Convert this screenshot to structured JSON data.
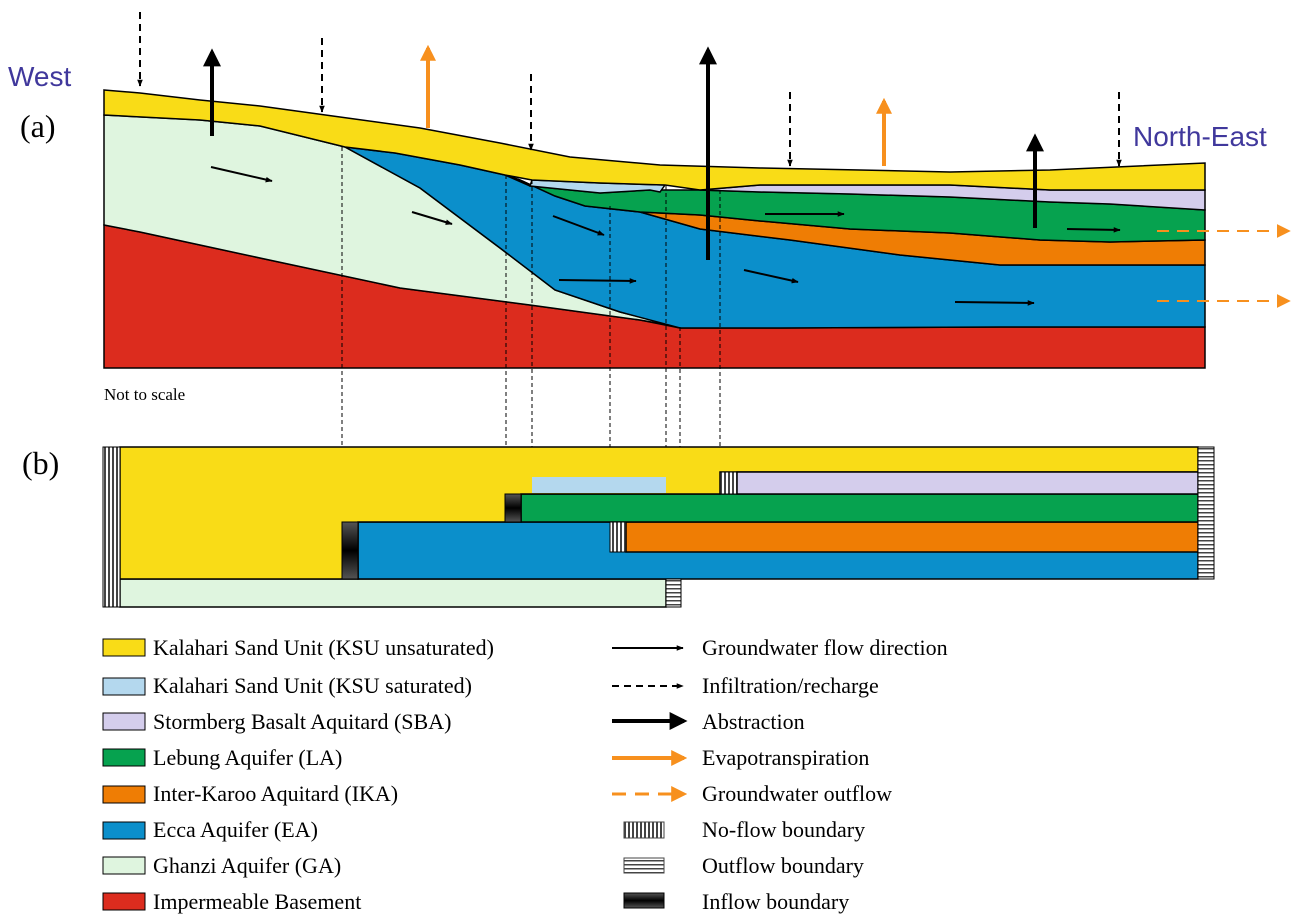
{
  "labels": {
    "west": "West",
    "north_east": "North-East",
    "panel_a": "(a)",
    "panel_b": "(b)",
    "scale_note": "Not to scale"
  },
  "colors": {
    "ksu_unsaturated": "#f9dc17",
    "ksu_saturated": "#b4d8ee",
    "sba": "#d4cdec",
    "la": "#06a24f",
    "ika": "#ef7d04",
    "ea": "#0b8fcb",
    "ga": "#dff5df",
    "basement": "#dc2c1e",
    "evapotranspiration": "#f7901e",
    "outflow": "#f7901e",
    "text_direction": "#40389c"
  },
  "legend_units": [
    {
      "key": "ksu_unsaturated",
      "label": "Kalahari Sand Unit (KSU unsaturated)"
    },
    {
      "key": "ksu_saturated",
      "label": "Kalahari Sand Unit (KSU saturated)"
    },
    {
      "key": "sba",
      "label": "Stormberg Basalt Aquitard (SBA)"
    },
    {
      "key": "la",
      "label": "Lebung Aquifer (LA)"
    },
    {
      "key": "ika",
      "label": "Inter-Karoo Aquitard (IKA)"
    },
    {
      "key": "ea",
      "label": "Ecca Aquifer (EA)"
    },
    {
      "key": "ga",
      "label": "Ghanzi Aquifer (GA)"
    },
    {
      "key": "basement",
      "label": "Impermeable Basement"
    }
  ],
  "legend_symbols": [
    {
      "key": "flow",
      "label": "Groundwater flow direction"
    },
    {
      "key": "recharge",
      "label": "Infiltration/recharge"
    },
    {
      "key": "abstraction",
      "label": "Abstraction"
    },
    {
      "key": "evapotranspiration",
      "label": "Evapotranspiration"
    },
    {
      "key": "outflow",
      "label": "Groundwater outflow"
    },
    {
      "key": "no_flow_boundary",
      "label": "No-flow boundary"
    },
    {
      "key": "outflow_boundary",
      "label": "Outflow boundary"
    },
    {
      "key": "inflow_boundary",
      "label": "Inflow boundary"
    }
  ]
}
